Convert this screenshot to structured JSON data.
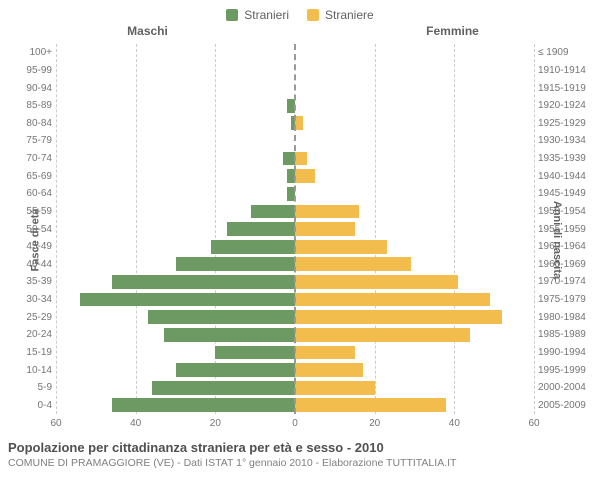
{
  "legend": {
    "male": {
      "label": "Stranieri",
      "color": "#6d9962"
    },
    "female": {
      "label": "Straniere",
      "color": "#f3bd4e"
    }
  },
  "headers": {
    "male": "Maschi",
    "female": "Femmine"
  },
  "axis_titles": {
    "left": "Fasce di età",
    "right": "Anni di nascita"
  },
  "chart": {
    "type": "population-pyramid",
    "max_value": 60,
    "grid_step": 20,
    "grid_color": "#cccccc",
    "center_color": "#999999",
    "background": "#ffffff",
    "male_color": "#6d9962",
    "female_color": "#f3bd4e",
    "label_fontsize": 10,
    "rows": [
      {
        "age": "100+",
        "birth": "≤ 1909",
        "m": 0,
        "f": 0
      },
      {
        "age": "95-99",
        "birth": "1910-1914",
        "m": 0,
        "f": 0
      },
      {
        "age": "90-94",
        "birth": "1915-1919",
        "m": 0,
        "f": 0
      },
      {
        "age": "85-89",
        "birth": "1920-1924",
        "m": 2,
        "f": 0
      },
      {
        "age": "80-84",
        "birth": "1925-1929",
        "m": 1,
        "f": 2
      },
      {
        "age": "75-79",
        "birth": "1930-1934",
        "m": 0,
        "f": 0
      },
      {
        "age": "70-74",
        "birth": "1935-1939",
        "m": 3,
        "f": 3
      },
      {
        "age": "65-69",
        "birth": "1940-1944",
        "m": 2,
        "f": 5
      },
      {
        "age": "60-64",
        "birth": "1945-1949",
        "m": 2,
        "f": 0
      },
      {
        "age": "55-59",
        "birth": "1950-1954",
        "m": 11,
        "f": 16
      },
      {
        "age": "50-54",
        "birth": "1955-1959",
        "m": 17,
        "f": 15
      },
      {
        "age": "45-49",
        "birth": "1960-1964",
        "m": 21,
        "f": 23
      },
      {
        "age": "40-44",
        "birth": "1965-1969",
        "m": 30,
        "f": 29
      },
      {
        "age": "35-39",
        "birth": "1970-1974",
        "m": 46,
        "f": 41
      },
      {
        "age": "30-34",
        "birth": "1975-1979",
        "m": 54,
        "f": 49
      },
      {
        "age": "25-29",
        "birth": "1980-1984",
        "m": 37,
        "f": 52
      },
      {
        "age": "20-24",
        "birth": "1985-1989",
        "m": 33,
        "f": 44
      },
      {
        "age": "15-19",
        "birth": "1990-1994",
        "m": 20,
        "f": 15
      },
      {
        "age": "10-14",
        "birth": "1995-1999",
        "m": 30,
        "f": 17
      },
      {
        "age": "5-9",
        "birth": "2000-2004",
        "m": 36,
        "f": 20
      },
      {
        "age": "0-4",
        "birth": "2005-2009",
        "m": 46,
        "f": 38
      }
    ],
    "x_ticks_left": [
      60,
      40,
      20,
      0
    ],
    "x_ticks_right": [
      0,
      20,
      40,
      60
    ]
  },
  "footer": {
    "title": "Popolazione per cittadinanza straniera per età e sesso - 2010",
    "subtitle": "COMUNE DI PRAMAGGIORE (VE) - Dati ISTAT 1° gennaio 2010 - Elaborazione TUTTITALIA.IT"
  }
}
